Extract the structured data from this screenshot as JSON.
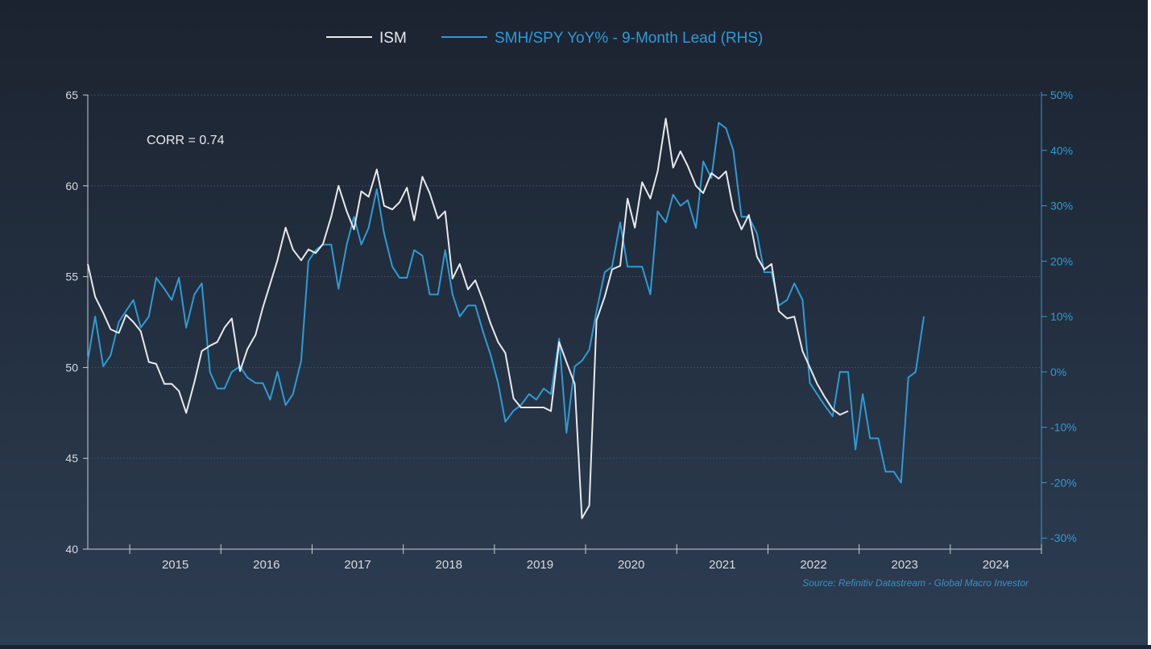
{
  "chart_data": {
    "type": "line",
    "legend": [
      {
        "label": "ISM",
        "color": "#e8eaee"
      },
      {
        "label": "SMH/SPY YoY% - 9-Month Lead (RHS)",
        "color": "#2e9bd6"
      }
    ],
    "legend_position": "top-center",
    "annotation": "CORR = 0.74",
    "source": "Source: Refinitiv Datastream - Global Macro Investor",
    "left_axis": {
      "ylim": [
        40,
        65
      ],
      "ticks": [
        40,
        45,
        50,
        55,
        60,
        65
      ],
      "tick_labels": [
        "40",
        "45",
        "50",
        "55",
        "60",
        "65"
      ]
    },
    "right_axis": {
      "ylim": [
        -32,
        50
      ],
      "ticks": [
        -30,
        -20,
        -10,
        0,
        10,
        20,
        30,
        40,
        50
      ],
      "tick_labels": [
        "-30%",
        "-20%",
        "-10%",
        "0%",
        "10%",
        "20%",
        "30%",
        "40%",
        "50%"
      ]
    },
    "x_axis": {
      "xlim": [
        2014.54,
        2025.0
      ],
      "year_labels": [
        "2015",
        "2016",
        "2017",
        "2018",
        "2019",
        "2020",
        "2021",
        "2022",
        "2023",
        "2024"
      ]
    },
    "grid": true,
    "series": [
      {
        "name": "ISM",
        "axis": "left",
        "color": "#e8eaee",
        "points": [
          [
            2014.54,
            55.7
          ],
          [
            2014.62,
            53.9
          ],
          [
            2014.71,
            53.0
          ],
          [
            2014.79,
            52.1
          ],
          [
            2014.88,
            51.9
          ],
          [
            2014.96,
            52.9
          ],
          [
            2015.04,
            52.5
          ],
          [
            2015.12,
            52.0
          ],
          [
            2015.21,
            50.3
          ],
          [
            2015.29,
            50.2
          ],
          [
            2015.38,
            49.1
          ],
          [
            2015.46,
            49.1
          ],
          [
            2015.54,
            48.7
          ],
          [
            2015.62,
            47.5
          ],
          [
            2015.71,
            49.2
          ],
          [
            2015.79,
            50.9
          ],
          [
            2015.88,
            51.2
          ],
          [
            2015.96,
            51.4
          ],
          [
            2016.04,
            52.2
          ],
          [
            2016.12,
            52.7
          ],
          [
            2016.21,
            49.8
          ],
          [
            2016.29,
            51.0
          ],
          [
            2016.38,
            51.8
          ],
          [
            2016.46,
            53.3
          ],
          [
            2016.54,
            54.6
          ],
          [
            2016.62,
            55.9
          ],
          [
            2016.71,
            57.7
          ],
          [
            2016.79,
            56.5
          ],
          [
            2016.88,
            55.9
          ],
          [
            2016.96,
            56.5
          ],
          [
            2017.04,
            56.3
          ],
          [
            2017.12,
            56.8
          ],
          [
            2017.21,
            58.3
          ],
          [
            2017.29,
            60.0
          ],
          [
            2017.38,
            58.6
          ],
          [
            2017.46,
            57.6
          ],
          [
            2017.54,
            59.7
          ],
          [
            2017.62,
            59.4
          ],
          [
            2017.71,
            60.9
          ],
          [
            2017.79,
            58.9
          ],
          [
            2017.88,
            58.7
          ],
          [
            2017.96,
            59.1
          ],
          [
            2018.04,
            59.9
          ],
          [
            2018.12,
            58.1
          ],
          [
            2018.21,
            60.5
          ],
          [
            2018.29,
            59.6
          ],
          [
            2018.38,
            58.2
          ],
          [
            2018.46,
            58.6
          ],
          [
            2018.54,
            54.9
          ],
          [
            2018.62,
            55.7
          ],
          [
            2018.71,
            54.3
          ],
          [
            2018.79,
            54.8
          ],
          [
            2018.88,
            53.6
          ],
          [
            2018.96,
            52.4
          ],
          [
            2019.04,
            51.4
          ],
          [
            2019.12,
            50.8
          ],
          [
            2019.21,
            48.3
          ],
          [
            2019.29,
            47.8
          ],
          [
            2019.38,
            47.8
          ],
          [
            2019.46,
            47.8
          ],
          [
            2019.54,
            47.8
          ],
          [
            2019.62,
            47.6
          ],
          [
            2019.71,
            51.4
          ],
          [
            2019.79,
            50.3
          ],
          [
            2019.88,
            49.1
          ],
          [
            2019.96,
            41.7
          ],
          [
            2020.04,
            42.4
          ],
          [
            2020.12,
            52.6
          ],
          [
            2020.21,
            53.9
          ],
          [
            2020.29,
            55.4
          ],
          [
            2020.38,
            55.6
          ],
          [
            2020.46,
            59.3
          ],
          [
            2020.54,
            57.7
          ],
          [
            2020.62,
            60.2
          ],
          [
            2020.71,
            59.3
          ],
          [
            2020.79,
            60.8
          ],
          [
            2020.88,
            63.7
          ],
          [
            2020.96,
            61.0
          ],
          [
            2021.04,
            61.9
          ],
          [
            2021.12,
            61.1
          ],
          [
            2021.21,
            60.0
          ],
          [
            2021.29,
            59.6
          ],
          [
            2021.38,
            60.7
          ],
          [
            2021.46,
            60.4
          ],
          [
            2021.54,
            60.8
          ],
          [
            2021.62,
            58.7
          ],
          [
            2021.71,
            57.6
          ],
          [
            2021.79,
            58.4
          ],
          [
            2021.88,
            56.1
          ],
          [
            2021.96,
            55.4
          ],
          [
            2022.04,
            55.7
          ],
          [
            2022.12,
            53.1
          ],
          [
            2022.21,
            52.7
          ],
          [
            2022.29,
            52.8
          ],
          [
            2022.38,
            50.9
          ],
          [
            2022.46,
            50.0
          ],
          [
            2022.54,
            49.1
          ],
          [
            2022.62,
            48.4
          ],
          [
            2022.71,
            47.7
          ],
          [
            2022.79,
            47.4
          ],
          [
            2022.88,
            47.6
          ]
        ]
      },
      {
        "name": "SMH/SPY YoY% - 9-Month Lead (RHS)",
        "axis": "right",
        "color": "#2e9bd6",
        "points": [
          [
            2014.54,
            2
          ],
          [
            2014.62,
            10
          ],
          [
            2014.71,
            1
          ],
          [
            2014.79,
            3
          ],
          [
            2014.88,
            9
          ],
          [
            2014.96,
            11
          ],
          [
            2015.04,
            13
          ],
          [
            2015.12,
            8
          ],
          [
            2015.21,
            10
          ],
          [
            2015.29,
            17
          ],
          [
            2015.38,
            15
          ],
          [
            2015.46,
            13
          ],
          [
            2015.54,
            17
          ],
          [
            2015.62,
            8
          ],
          [
            2015.71,
            14
          ],
          [
            2015.79,
            16
          ],
          [
            2015.88,
            0
          ],
          [
            2015.96,
            -3
          ],
          [
            2016.04,
            -3
          ],
          [
            2016.12,
            0
          ],
          [
            2016.21,
            1
          ],
          [
            2016.29,
            -1
          ],
          [
            2016.38,
            -2
          ],
          [
            2016.46,
            -2
          ],
          [
            2016.54,
            -5
          ],
          [
            2016.62,
            0
          ],
          [
            2016.71,
            -6
          ],
          [
            2016.79,
            -4
          ],
          [
            2016.88,
            2
          ],
          [
            2016.96,
            20
          ],
          [
            2017.04,
            22
          ],
          [
            2017.12,
            23
          ],
          [
            2017.21,
            23
          ],
          [
            2017.29,
            15
          ],
          [
            2017.38,
            23
          ],
          [
            2017.46,
            28
          ],
          [
            2017.54,
            23
          ],
          [
            2017.62,
            26
          ],
          [
            2017.71,
            33
          ],
          [
            2017.79,
            25
          ],
          [
            2017.88,
            19
          ],
          [
            2017.96,
            17
          ],
          [
            2018.04,
            17
          ],
          [
            2018.12,
            22
          ],
          [
            2018.21,
            21
          ],
          [
            2018.29,
            14
          ],
          [
            2018.38,
            14
          ],
          [
            2018.46,
            22
          ],
          [
            2018.54,
            14
          ],
          [
            2018.62,
            10
          ],
          [
            2018.71,
            12
          ],
          [
            2018.79,
            12
          ],
          [
            2018.88,
            7
          ],
          [
            2018.96,
            3
          ],
          [
            2019.04,
            -2
          ],
          [
            2019.12,
            -9
          ],
          [
            2019.21,
            -7
          ],
          [
            2019.29,
            -6
          ],
          [
            2019.38,
            -4
          ],
          [
            2019.46,
            -5
          ],
          [
            2019.54,
            -3
          ],
          [
            2019.62,
            -4
          ],
          [
            2019.71,
            6
          ],
          [
            2019.79,
            -11
          ],
          [
            2019.88,
            1
          ],
          [
            2019.96,
            2
          ],
          [
            2020.04,
            4
          ],
          [
            2020.12,
            11
          ],
          [
            2020.21,
            18
          ],
          [
            2020.29,
            19
          ],
          [
            2020.38,
            27
          ],
          [
            2020.46,
            19
          ],
          [
            2020.54,
            19
          ],
          [
            2020.62,
            19
          ],
          [
            2020.71,
            14
          ],
          [
            2020.79,
            29
          ],
          [
            2020.88,
            27
          ],
          [
            2020.96,
            32
          ],
          [
            2021.04,
            30
          ],
          [
            2021.12,
            31
          ],
          [
            2021.21,
            26
          ],
          [
            2021.29,
            38
          ],
          [
            2021.38,
            35
          ],
          [
            2021.46,
            45
          ],
          [
            2021.54,
            44
          ],
          [
            2021.62,
            40
          ],
          [
            2021.71,
            28
          ],
          [
            2021.79,
            28
          ],
          [
            2021.88,
            25
          ],
          [
            2021.96,
            18
          ],
          [
            2022.04,
            18
          ],
          [
            2022.12,
            12
          ],
          [
            2022.21,
            13
          ],
          [
            2022.29,
            16
          ],
          [
            2022.38,
            13
          ],
          [
            2022.46,
            -2
          ],
          [
            2022.54,
            -4
          ],
          [
            2022.62,
            -6
          ],
          [
            2022.71,
            -8
          ],
          [
            2022.79,
            0
          ],
          [
            2022.88,
            0
          ],
          [
            2022.96,
            -14
          ],
          [
            2023.04,
            -4
          ],
          [
            2023.12,
            -12
          ],
          [
            2023.21,
            -12
          ],
          [
            2023.29,
            -18
          ],
          [
            2023.38,
            -18
          ],
          [
            2023.46,
            -20
          ],
          [
            2023.54,
            -1
          ],
          [
            2023.62,
            0
          ],
          [
            2023.71,
            10
          ]
        ]
      }
    ]
  }
}
